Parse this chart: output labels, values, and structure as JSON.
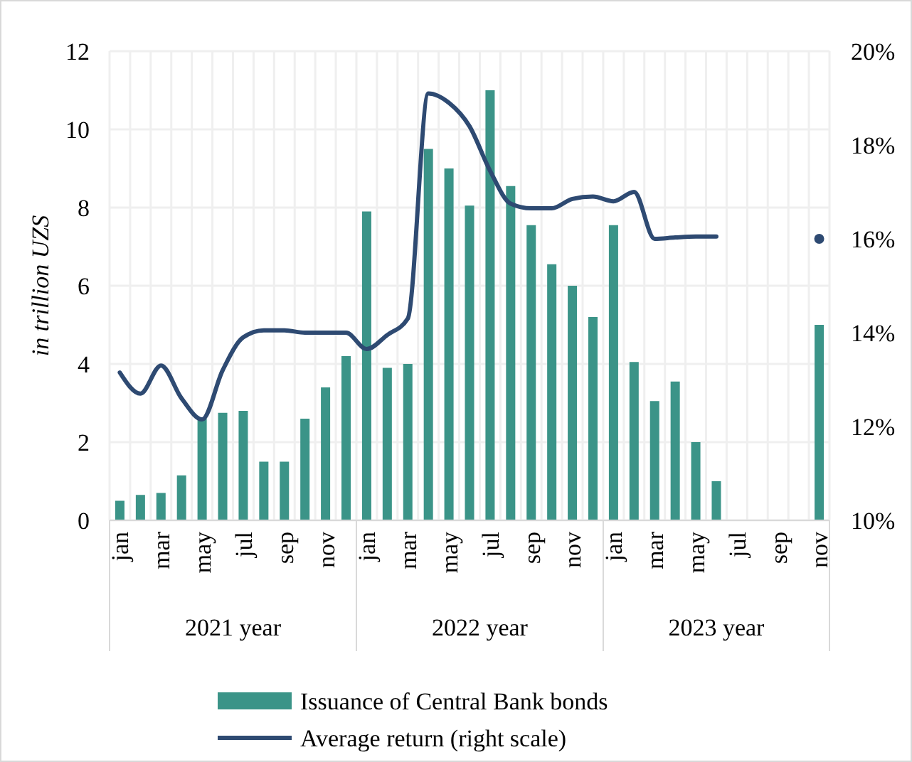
{
  "chart_data": {
    "type": "bar",
    "categories": [
      "jan",
      null,
      "mar",
      null,
      "may",
      null,
      "jul",
      null,
      "sep",
      null,
      "nov",
      null,
      "jan",
      null,
      "mar",
      null,
      "may",
      null,
      "jul",
      null,
      "sep",
      null,
      "nov",
      null,
      "jan",
      null,
      "mar",
      null,
      "may",
      null,
      "jul",
      null,
      "sep",
      null,
      "nov"
    ],
    "ylabel": "in trillion UZS",
    "ylim": [
      0,
      12
    ],
    "yticks": [
      0,
      2,
      4,
      6,
      8,
      10,
      12
    ],
    "y2lim": [
      10,
      20
    ],
    "y2ticks": [
      {
        "value": 10,
        "label": "10%"
      },
      {
        "value": 12,
        "label": "12%"
      },
      {
        "value": 14,
        "label": "14%"
      },
      {
        "value": 16,
        "label": "16%"
      },
      {
        "value": 18,
        "label": "18%"
      },
      {
        "value": 20,
        "label": "20%"
      }
    ],
    "grid": true,
    "legend": "bottom",
    "annotations": [
      "2021 year",
      "2022 year",
      "2023 year"
    ],
    "series": [
      {
        "name": "Issuance of Central Bank bonds",
        "color": "#3b9488",
        "values": [
          0.5,
          0.65,
          0.7,
          1.15,
          2.6,
          2.75,
          2.8,
          1.5,
          1.5,
          2.6,
          3.4,
          4.2,
          7.9,
          3.9,
          4.0,
          9.5,
          9.0,
          8.05,
          11.0,
          8.55,
          7.55,
          6.55,
          6.0,
          5.2,
          7.55,
          4.05,
          3.05,
          3.55,
          2.0,
          1.0,
          0,
          0,
          0,
          0,
          5.0
        ]
      },
      {
        "name": "Average return (right scale)",
        "type": "line",
        "axis": "y2",
        "color": "#2e4a72",
        "values": [
          13.15,
          12.7,
          13.3,
          12.6,
          12.15,
          13.2,
          13.9,
          14.05,
          14.05,
          14.0,
          14.0,
          14.0,
          13.65,
          13.95,
          14.3,
          19.1,
          18.9,
          18.4,
          17.45,
          16.75,
          16.65,
          16.65,
          16.85,
          16.9,
          16.8,
          17.0,
          16.0,
          16.03,
          16.05,
          16.05,
          null,
          null,
          null,
          null,
          16.0
        ]
      }
    ]
  }
}
